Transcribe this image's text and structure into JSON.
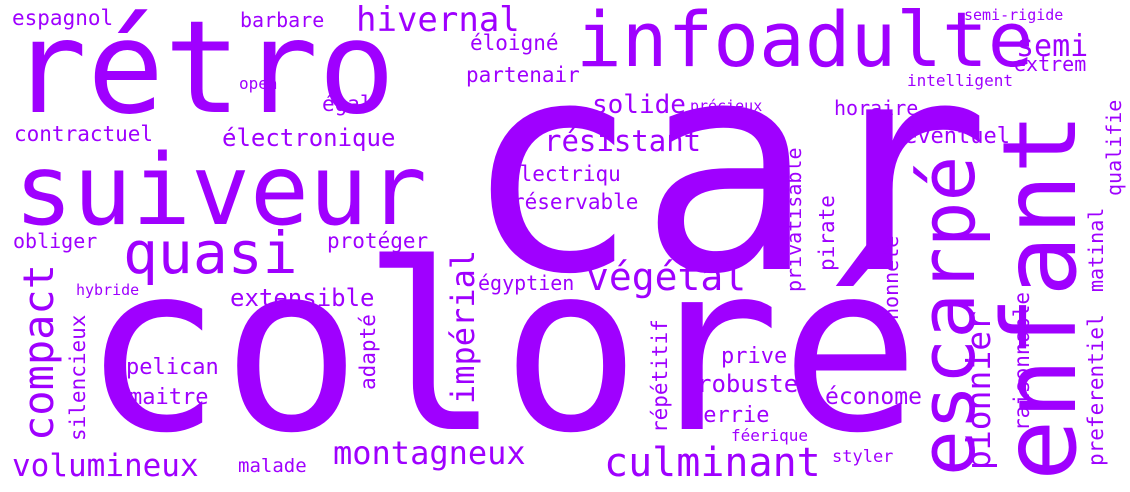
{
  "colors": {
    "word": "#9f00ff",
    "background": "#ffffff"
  },
  "words": {
    "car": "car",
    "colore": "coloré",
    "retro": "rétro",
    "infoadulte": "infoadulte",
    "suiveur": "suiveur",
    "enfant": "enfant",
    "escarpe": "escarpé",
    "quasi": "quasi",
    "culminant": "culminant",
    "compact": "compact",
    "vegetal": "végétal",
    "montagneux": "montagneux",
    "volumineux": "volumineux",
    "hivernal": "hivernal",
    "pionnier": "pionnier",
    "imperial": "impérial",
    "semi": "semi",
    "resistant": "résistant",
    "electronique": "électronique",
    "extensible": "extensible",
    "solide": "solide",
    "partenair": "partenair",
    "electriqu": "electriqu",
    "reservable": "réservable",
    "robuste": "robuste",
    "econome": "économe",
    "espagnol": "espagnol",
    "barbare": "barbare",
    "eloigne": "éloigné",
    "contractuel": "contractuel",
    "obliger": "obliger",
    "proteger": "protéger",
    "egyptien": "égyptien",
    "pelican": "pelican",
    "maitre": "maitre",
    "prive": "prive",
    "ferrie": "ferrie",
    "horaire": "horaire",
    "eventuel": "éventuel",
    "extrem": "extrem",
    "egal": "égal",
    "silencieux": "silencieux",
    "adapte": "adapté",
    "repetitif": "répétitif",
    "pirate": "pirate",
    "privatisable": "privatisable",
    "honnete": "honnête",
    "raisonnable": "raisonnable",
    "preferentiel": "preferentiel",
    "matinal": "matinal",
    "qualifie": "qualifie",
    "malade": "malade",
    "styler": "styler",
    "feerique": "féerique",
    "open": "open",
    "precieux": "précieux",
    "intelligent": "intelligent",
    "semi_rigide": "semi-rigide",
    "hybride": "hybride"
  }
}
